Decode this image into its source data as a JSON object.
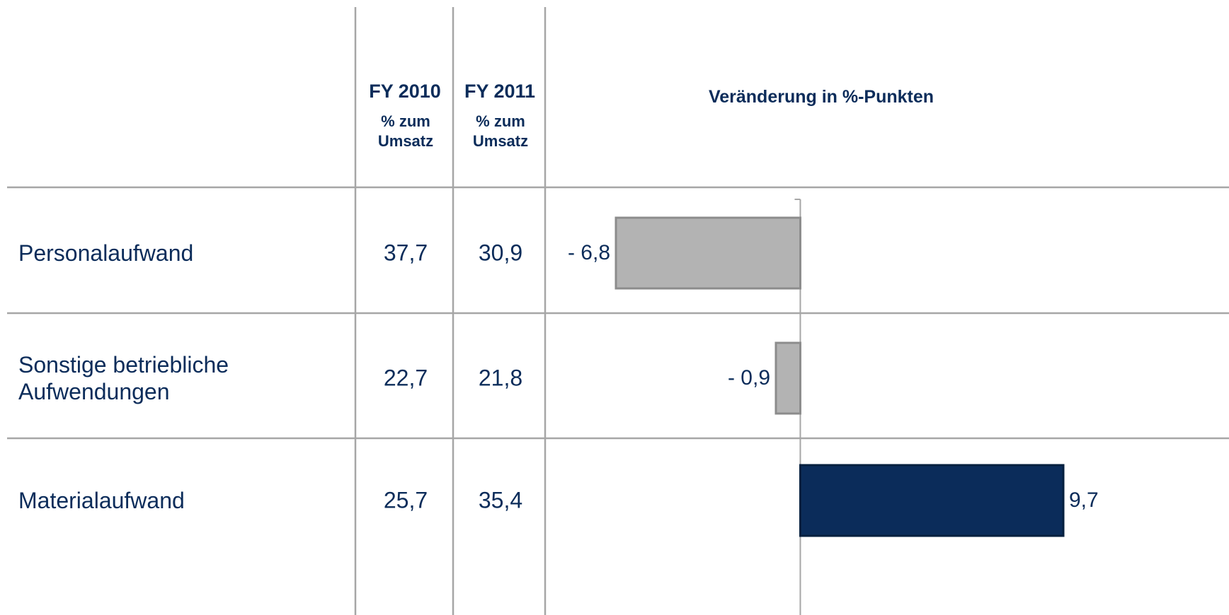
{
  "table": {
    "columns": [
      {
        "year": "FY 2010",
        "unit": "% zum Umsatz"
      },
      {
        "year": "FY 2011",
        "unit": "% zum Umsatz"
      }
    ],
    "rows": [
      [
        "37,7",
        "30,9"
      ],
      [
        "22,7",
        "21,8"
      ],
      [
        "25,7",
        "35,4"
      ]
    ]
  },
  "chart_data": {
    "type": "bar",
    "orientation": "horizontal",
    "title": "Veränderung in %-Punkten",
    "categories": [
      "Personalaufwand",
      "Sonstige betriebliche Aufwendungen",
      "Materialaufwand"
    ],
    "values": [
      -6.8,
      -0.9,
      9.7
    ],
    "value_labels": [
      "- 6,8",
      "- 0,9",
      "9,7"
    ],
    "colors": [
      "#b3b3b3",
      "#b3b3b3",
      "#0b2c5a"
    ]
  }
}
